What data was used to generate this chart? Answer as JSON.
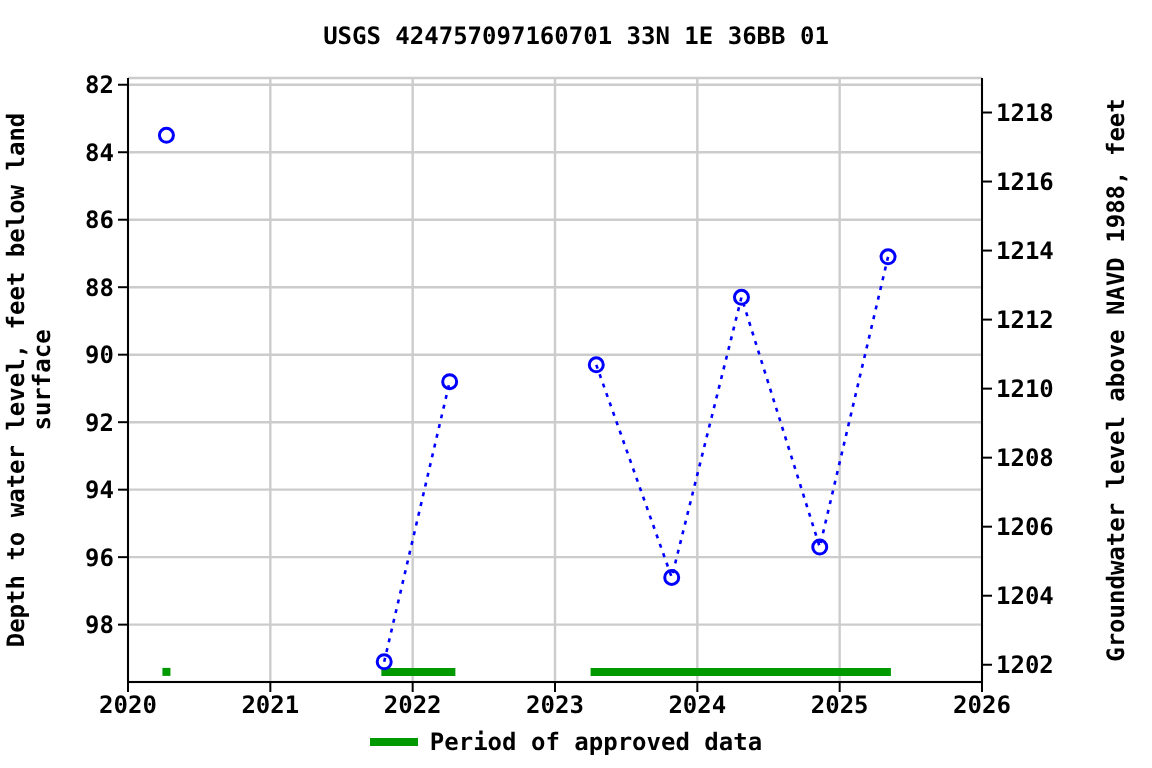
{
  "chart_data": {
    "type": "line",
    "title": "USGS 424757097160701 33N 1E 36BB 01",
    "ylabel": "Depth to water level, feet below land\nsurface",
    "y2label": "Groundwater level above NAVD 1988, feet",
    "series": [
      {
        "color": "#0000ff",
        "x": [
          2020.27
        ],
        "values": [
          83.5
        ]
      },
      {
        "color": "#0000ff",
        "x": [
          2021.8,
          2022.26
        ],
        "values": [
          99.1,
          90.8
        ]
      },
      {
        "color": "#0000ff",
        "x": [
          2023.29,
          2023.82,
          2024.31,
          2024.86,
          2025.34
        ],
        "values": [
          90.3,
          96.6,
          88.3,
          95.7,
          87.1
        ]
      },
      {
        "name": "Period of approved data",
        "color": "#009900",
        "marker": "none",
        "line_style": "solid",
        "x": [
          2021.78,
          2022.3,
          2023.0,
          2023.25,
          2025.36
        ],
        "values": [
          99.4,
          99.4,
          null,
          99.4,
          99.4
        ]
      },
      {
        "type": "scatter",
        "color": "#009900",
        "marker": "square",
        "x": [
          2020.27
        ],
        "values": [
          99.4
        ]
      }
    ],
    "xlim": [
      2020,
      2026
    ],
    "xticks": [
      2020,
      2021,
      2022,
      2023,
      2024,
      2025,
      2026
    ],
    "ylim": [
      99.7,
      81.8
    ],
    "yticks": [
      82,
      84,
      86,
      88,
      90,
      92,
      94,
      96,
      98
    ],
    "y2lim": [
      1201.5,
      1219
    ],
    "y2ticks": [
      1202,
      1204,
      1206,
      1208,
      1210,
      1212,
      1214,
      1216,
      1218
    ],
    "grid": true,
    "legend": "bottom",
    "marker": "circle",
    "line_style": "dotted"
  }
}
